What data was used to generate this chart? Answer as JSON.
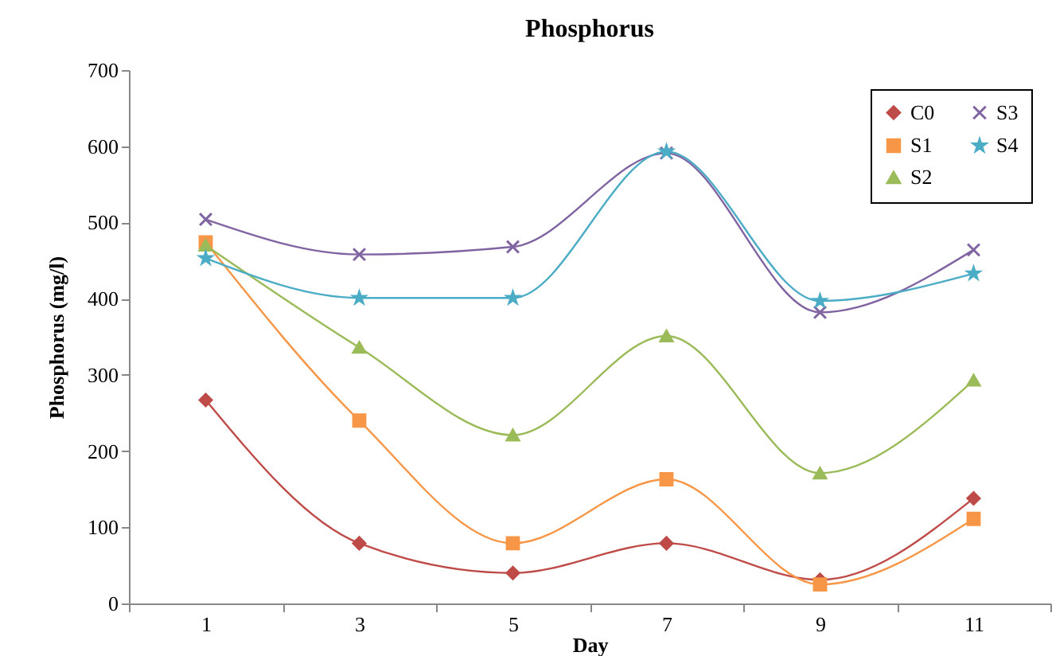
{
  "chart_data": {
    "type": "line",
    "title": "Phosphorus",
    "xlabel": "Day",
    "ylabel": "Phosphorus  (mg/l)",
    "categories": [
      "1",
      "3",
      "5",
      "7",
      "9",
      "11"
    ],
    "ylim": [
      0,
      700
    ],
    "yticks": [
      0,
      100,
      200,
      300,
      400,
      500,
      600,
      700
    ],
    "grid": false,
    "legend": "top right",
    "series": [
      {
        "name": "C0",
        "color": "#be4b48",
        "marker": "diamond",
        "values": [
          267,
          79,
          40,
          79,
          31,
          138
        ]
      },
      {
        "name": "S1",
        "color": "#f79646",
        "marker": "square",
        "values": [
          474,
          240,
          79,
          163,
          25,
          111
        ]
      },
      {
        "name": "S2",
        "color": "#9bbb59",
        "marker": "triangle",
        "values": [
          470,
          336,
          221,
          351,
          171,
          293
        ]
      },
      {
        "name": "S3",
        "color": "#8064a2",
        "marker": "cross",
        "values": [
          504,
          458,
          468,
          591,
          382,
          464
        ]
      },
      {
        "name": "S4",
        "color": "#4bacc6",
        "marker": "star",
        "values": [
          453,
          401,
          401,
          593,
          397,
          433
        ]
      }
    ]
  }
}
